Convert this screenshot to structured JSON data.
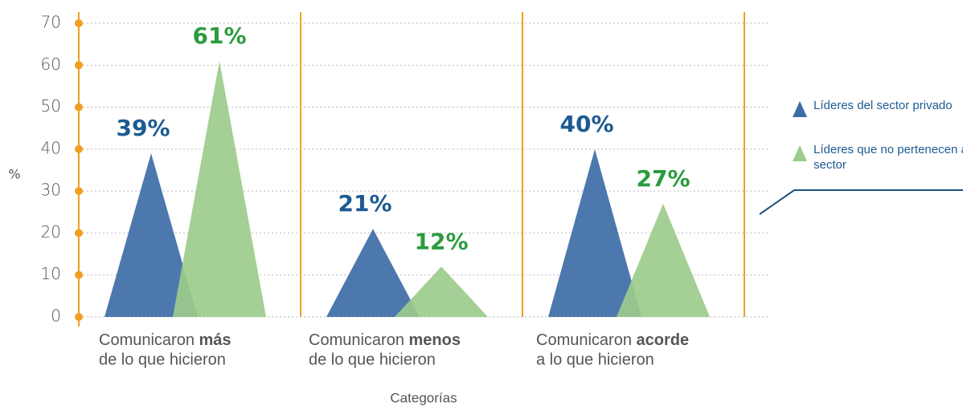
{
  "chart_data": {
    "type": "triangle-bar",
    "categories": [
      {
        "text": "Comunicaron",
        "emphasis": "más",
        "rest": "de lo que hicieron"
      },
      {
        "text": "Comunicaron",
        "emphasis": "menos",
        "rest": "de lo que hicieron"
      },
      {
        "text": "Comunicaron",
        "emphasis": "acorde",
        "rest": "a lo que hicieron"
      }
    ],
    "series": [
      {
        "name": "Líderes del sector privado",
        "color": "#3e6ca6",
        "label_color": "#1d5a92",
        "values": [
          39,
          21,
          40
        ],
        "value_labels": [
          "39%",
          "21%",
          "40%"
        ]
      },
      {
        "name": "Líderes que no pertenecen al sector",
        "color": "#9ccb8c",
        "label_color": "#2b9b3d",
        "values": [
          61,
          12,
          27
        ],
        "value_labels": [
          "61%",
          "12%",
          "27%"
        ]
      }
    ],
    "ylabel": "%",
    "xlabel": "Categorías",
    "ylim": [
      0,
      70
    ],
    "yticks": [
      0,
      10,
      20,
      30,
      40,
      50,
      60,
      70
    ],
    "grid": true,
    "legend": "right"
  }
}
